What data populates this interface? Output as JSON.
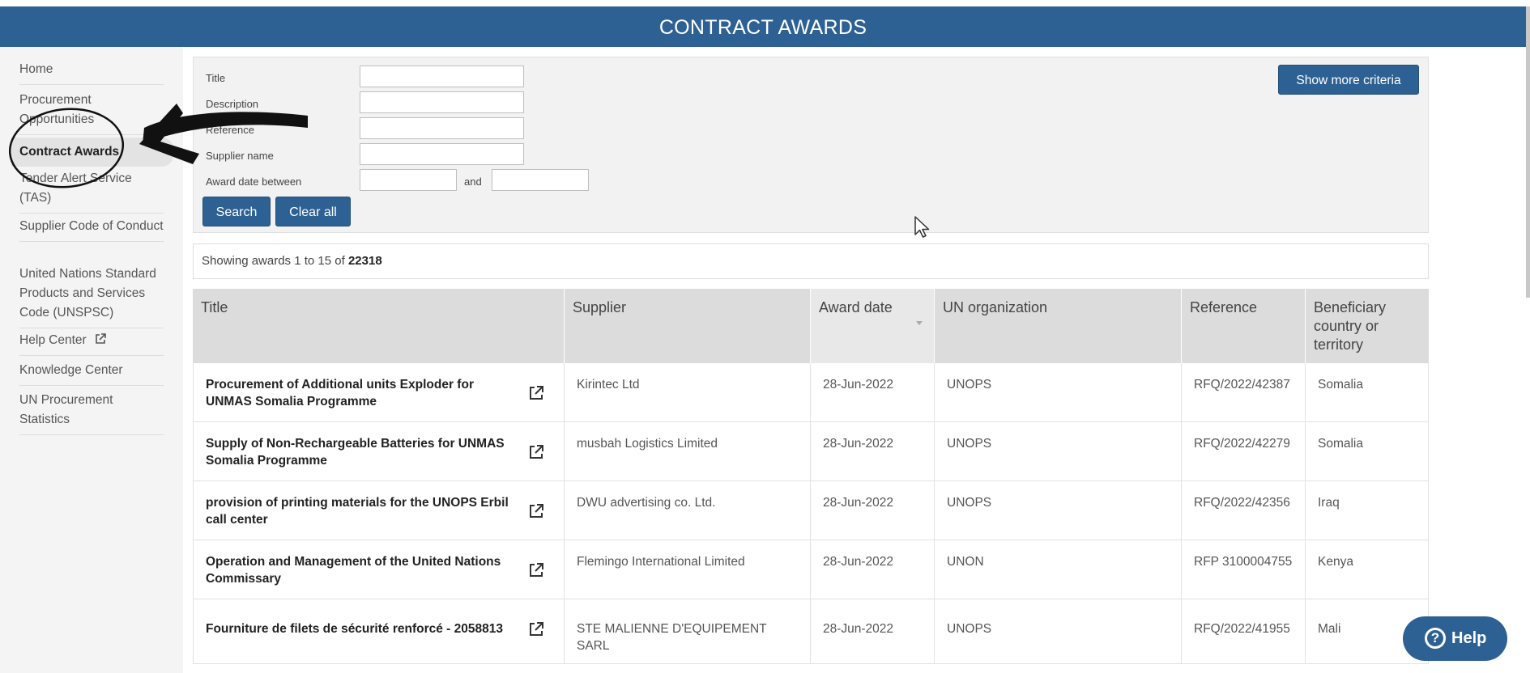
{
  "header": {
    "title": "CONTRACT AWARDS"
  },
  "sidebar": {
    "items": [
      {
        "label": "Home"
      },
      {
        "label": "Procurement Opportunities"
      },
      {
        "label": "Contract Awards"
      },
      {
        "label": "Tender Alert Service (TAS)"
      },
      {
        "label": "Supplier Code of Conduct"
      },
      {
        "label": "United Nations Standard Products and Services Code (UNSPSC)"
      },
      {
        "label": "Help Center"
      },
      {
        "label": "Knowledge Center"
      },
      {
        "label": "UN Procurement Statistics"
      }
    ]
  },
  "criteria": {
    "title_label": "Title",
    "description_label": "Description",
    "reference_label": "Reference",
    "supplier_label": "Supplier name",
    "award_date_label": "Award date between",
    "and_label": "and",
    "title_value": "",
    "description_value": "",
    "reference_value": "",
    "supplier_value": "",
    "date_from_value": "",
    "date_to_value": "",
    "show_more_label": "Show more criteria",
    "search_label": "Search",
    "clear_label": "Clear all"
  },
  "results": {
    "showing_prefix": "Showing awards 1 to 15  of ",
    "total": "22318"
  },
  "table": {
    "headers": {
      "title": "Title",
      "supplier": "Supplier",
      "award_date": "Award date",
      "un_org": "UN organization",
      "reference": "Reference",
      "beneficiary": "Beneficiary country or territory"
    },
    "rows": [
      {
        "title": "Procurement of Additional units Exploder for UNMAS Somalia Programme",
        "supplier": "Kirintec Ltd",
        "award_date": "28-Jun-2022",
        "un_org": "UNOPS",
        "reference": "RFQ/2022/42387",
        "beneficiary": "Somalia"
      },
      {
        "title": "Supply of Non-Rechargeable Batteries for UNMAS Somalia Programme",
        "supplier": "musbah Logistics Limited",
        "award_date": "28-Jun-2022",
        "un_org": "UNOPS",
        "reference": "RFQ/2022/42279",
        "beneficiary": "Somalia"
      },
      {
        "title": "provision of printing materials for the UNOPS Erbil call center",
        "supplier": "DWU advertising co. Ltd.",
        "award_date": "28-Jun-2022",
        "un_org": "UNOPS",
        "reference": "RFQ/2022/42356",
        "beneficiary": "Iraq"
      },
      {
        "title": "Operation and Management of the United Nations Commissary",
        "supplier": "Flemingo International Limited",
        "award_date": "28-Jun-2022",
        "un_org": "UNON",
        "reference": "RFP 3100004755",
        "beneficiary": "Kenya"
      },
      {
        "title": "Fourniture de filets de sécurité renforcé - 2058813",
        "supplier": "STE MALIENNE D'EQUIPEMENT SARL",
        "award_date": "28-Jun-2022",
        "un_org": "UNOPS",
        "reference": "RFQ/2022/41955",
        "beneficiary": "Mali"
      }
    ]
  },
  "help": {
    "label": "Help",
    "glyph": "?"
  },
  "colors": {
    "brand": "#2d6193",
    "sidebar_bg": "#f4f4f4",
    "header_bg": "#dcdcdc"
  }
}
